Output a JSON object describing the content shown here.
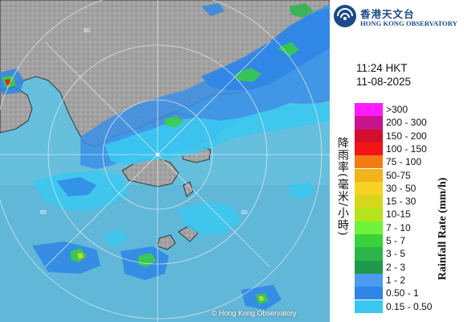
{
  "header": {
    "logo_icon": "hko-logo-icon",
    "org_name_zh": "香港天文台",
    "org_name_en": "HONG KONG OBSERVATORY"
  },
  "timestamp": {
    "time": "11:24 HKT",
    "date": "11-08-2025"
  },
  "map": {
    "copyright": "© Hong Kong Observatory",
    "range_ring_label": "60",
    "sea_color": "#66bfdd",
    "land_color": "#a2a2a2"
  },
  "legend": {
    "title_zh": "降雨率(毫米/小時)",
    "title_en": "Rainfall Rate (mm/h)",
    "items": [
      {
        "label": ">300",
        "color": "#ff1aff"
      },
      {
        "label": "200 - 300",
        "color": "#c8148c"
      },
      {
        "label": "150 - 200",
        "color": "#d40f2e"
      },
      {
        "label": "100 - 150",
        "color": "#f21515"
      },
      {
        "label": "75 - 100",
        "color": "#f27c13"
      },
      {
        "label": "50-75",
        "color": "#f2b31b"
      },
      {
        "label": "30 - 50",
        "color": "#f8d323"
      },
      {
        "label": "15 - 30",
        "color": "#d8d61c"
      },
      {
        "label": "10-15",
        "color": "#b6e41b"
      },
      {
        "label": "7 - 10",
        "color": "#6ef43a"
      },
      {
        "label": "5 - 7",
        "color": "#3ad23a"
      },
      {
        "label": "3 - 5",
        "color": "#2cb54a"
      },
      {
        "label": "2 - 3",
        "color": "#1f9a4a"
      },
      {
        "label": "1 - 2",
        "color": "#4d9af2"
      },
      {
        "label": "0.50 - 1",
        "color": "#2f86e6"
      },
      {
        "label": "0.15 - 0.50",
        "color": "#3bc8f0"
      }
    ]
  }
}
